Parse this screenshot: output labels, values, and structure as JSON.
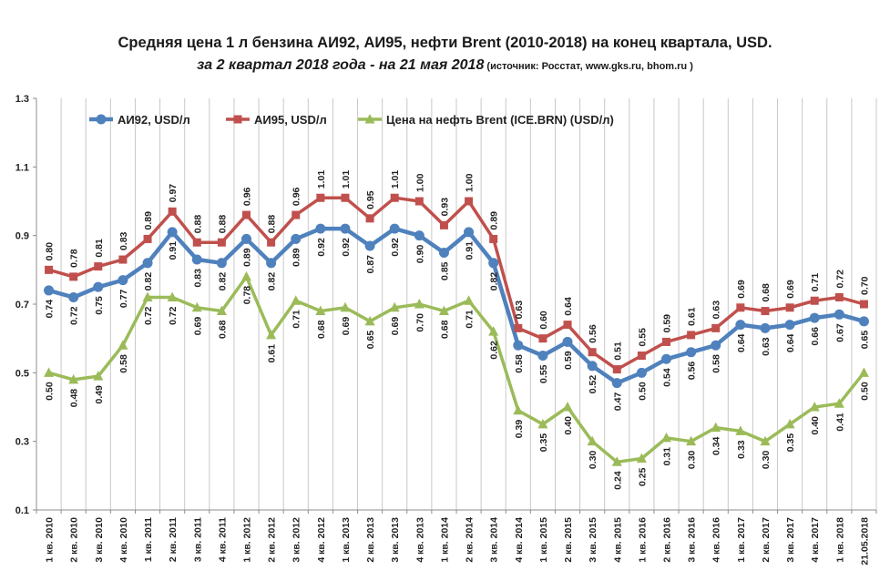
{
  "title": "Средняя цена 1 л бензина АИ92, АИ95,  нефти Brent (2010-2018) на конец квартала,  USD.",
  "subtitle": "за 2 квартал 2018 года - на 21 мая 2018",
  "source": " (источник:  Росстат,  www.gks.ru,  bhom.ru )",
  "chart_data": {
    "type": "line",
    "title": "Средняя цена 1 л бензина АИ92, АИ95,  нефти Brent (2010-2018) на конец квартала,  USD.",
    "subtitle": "за 2 квартал 2018 года - на 21 мая 2018",
    "categories": [
      "1 кв. 2010",
      "2 кв. 2010",
      "3 кв. 2010",
      "4 кв. 2010",
      "1 кв. 2011",
      "2 кв. 2011",
      "3 кв. 2011",
      "4 кв. 2011",
      "1 кв. 2012",
      "2 кв. 2012",
      "3 кв. 2012",
      "4 кв. 2012",
      "1 кв. 2013",
      "2 кв. 2013",
      "3 кв. 2013",
      "4 кв. 2013",
      "1 кв. 2014",
      "2 кв. 2014",
      "3 кв. 2014",
      "4 кв. 2014",
      "1 кв. 2015",
      "2 кв. 2015",
      "3 кв. 2015",
      "4 кв. 2015",
      "1 кв. 2016",
      "2 кв. 2016",
      "3 кв. 2016",
      "4 кв. 2016",
      "1 кв. 2017",
      "2 кв. 2017",
      "3 кв. 2017",
      "4 кв. 2017",
      "1 кв. 2018",
      "21.05.2018"
    ],
    "ylim": [
      0.1,
      1.3
    ],
    "yticks": [
      "0.1",
      "0.3",
      "0.5",
      "0.7",
      "0.9",
      "1.1",
      "1.3"
    ],
    "grid": "vertical",
    "legend": "top-left",
    "series": [
      {
        "name": "АИ92, USD/л",
        "color": "#4f81bd",
        "marker": "circle",
        "values": [
          0.74,
          0.72,
          0.75,
          0.77,
          0.82,
          0.91,
          0.83,
          0.82,
          0.89,
          0.82,
          0.89,
          0.92,
          0.92,
          0.87,
          0.92,
          0.9,
          0.85,
          0.91,
          0.82,
          0.58,
          0.55,
          0.59,
          0.52,
          0.47,
          0.5,
          0.54,
          0.56,
          0.58,
          0.64,
          0.63,
          0.64,
          0.66,
          0.67,
          0.65
        ],
        "labels": [
          "0.74",
          "0.72",
          "0.75",
          "0.77",
          "0.82",
          "0.91",
          "0.83",
          "0.82",
          "0.89",
          "0.82",
          "0.89",
          "0.92",
          "0.92",
          "0.87",
          "0.92",
          "0.90",
          "0.85",
          "0.91",
          "0.82",
          "0.58",
          "0.55",
          "0.59",
          "0.52",
          "0.47",
          "0.50",
          "0.54",
          "0.56",
          "0.58",
          "0.64",
          "0.63",
          "0.64",
          "0.66",
          "0.67",
          "0.65"
        ]
      },
      {
        "name": "АИ95, USD/л",
        "color": "#c0504d",
        "marker": "square",
        "values": [
          0.8,
          0.78,
          0.81,
          0.83,
          0.89,
          0.97,
          0.88,
          0.88,
          0.96,
          0.88,
          0.96,
          1.01,
          1.01,
          0.95,
          1.01,
          1.0,
          0.93,
          1.0,
          0.89,
          0.63,
          0.6,
          0.64,
          0.56,
          0.51,
          0.55,
          0.59,
          0.61,
          0.63,
          0.69,
          0.68,
          0.69,
          0.71,
          0.72,
          0.7
        ],
        "labels": [
          "0.80",
          "0.78",
          "0.81",
          "0.83",
          "0.89",
          "0.97",
          "0.88",
          "0.88",
          "0.96",
          "0.88",
          "0.96",
          "1.01",
          "1.01",
          "0.95",
          "1.01",
          "1.00",
          "0.93",
          "1.00",
          "0.89",
          "0.63",
          "0.60",
          "0.64",
          "0.56",
          "0.51",
          "0.55",
          "0.59",
          "0.61",
          "0.63",
          "0.69",
          "0.68",
          "0.69",
          "0.71",
          "0.72",
          "0.70"
        ]
      },
      {
        "name": "Цена на нефть Brent (ICE.BRN) (USD/л)",
        "color": "#9bbb59",
        "marker": "triangle",
        "values": [
          0.5,
          0.48,
          0.49,
          0.58,
          0.72,
          0.72,
          0.69,
          0.68,
          0.78,
          0.61,
          0.71,
          0.68,
          0.69,
          0.65,
          0.69,
          0.7,
          0.68,
          0.71,
          0.62,
          0.39,
          0.35,
          0.4,
          0.3,
          0.24,
          0.25,
          0.31,
          0.3,
          0.34,
          0.33,
          0.3,
          0.35,
          0.4,
          0.41,
          0.5
        ],
        "labels": [
          "0.50",
          "0.48",
          "0.49",
          "0.58",
          "0.72",
          "0.72",
          "0.69",
          "0.68",
          "0.78",
          "0.61",
          "0.71",
          "0.68",
          "0.69",
          "0.65",
          "0.69",
          "0.70",
          "0.68",
          "0.71",
          "0.62",
          "0.39",
          "0.35",
          "0.40",
          "0.30",
          "0.24",
          "0.25",
          "0.31",
          "0.30",
          "0.34",
          "0.33",
          "0.30",
          "0.35",
          "0.40",
          "0.41",
          "0.50"
        ]
      }
    ]
  }
}
